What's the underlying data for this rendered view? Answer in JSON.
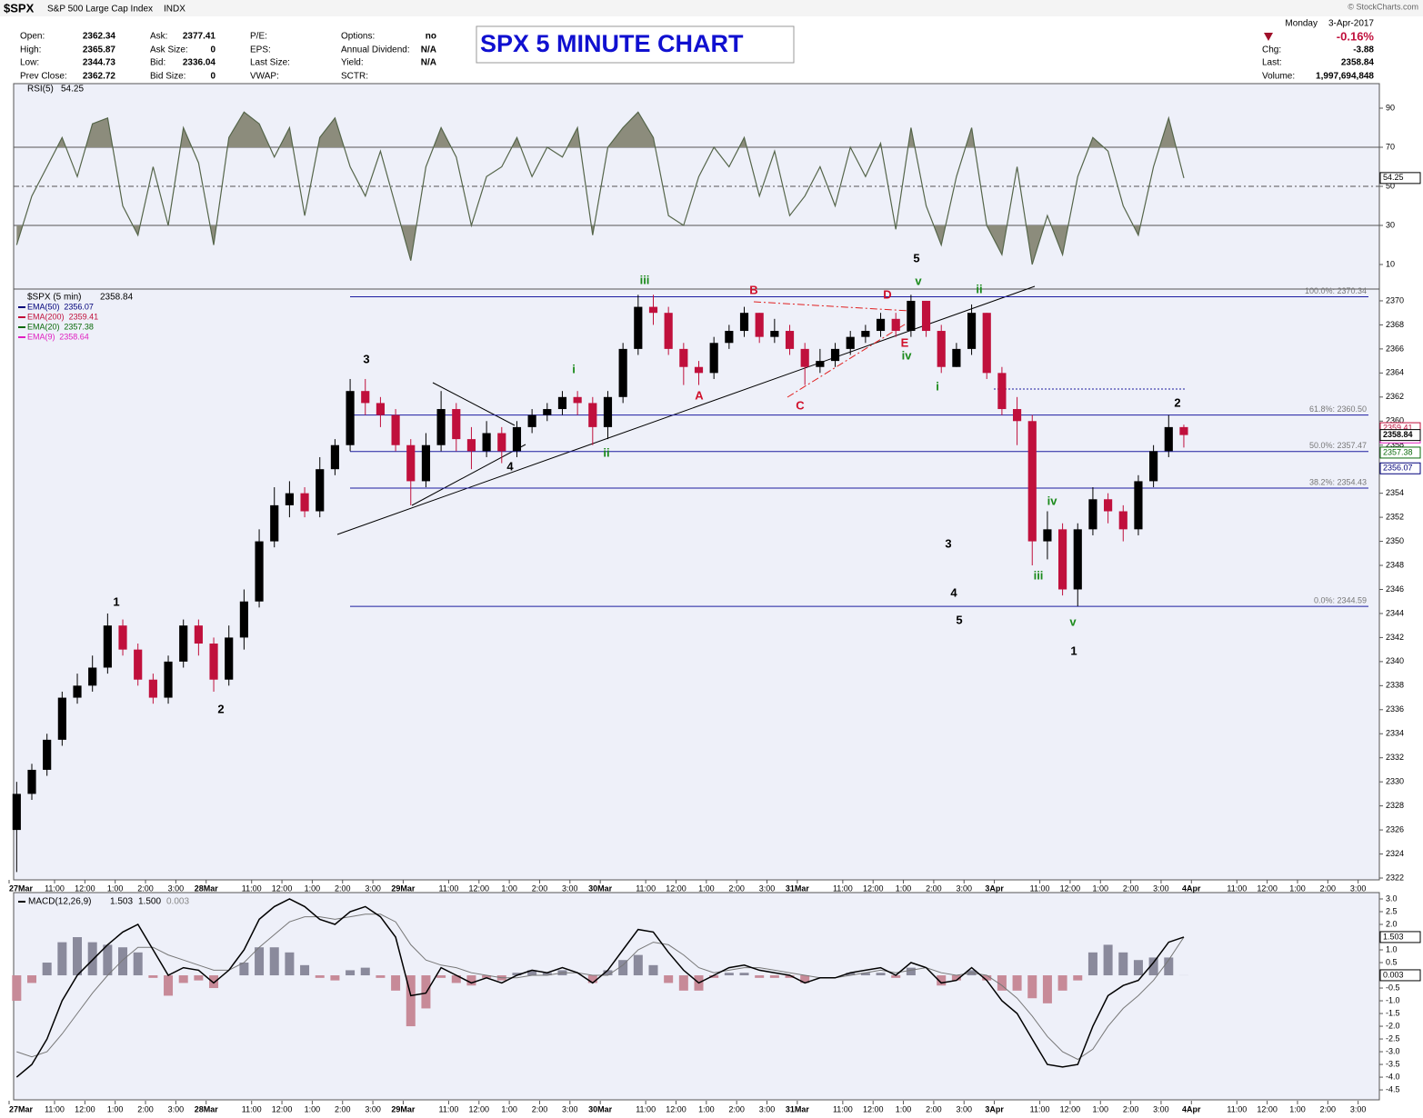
{
  "header": {
    "symbol": "$SPX",
    "name": "S&P 500 Large Cap Index",
    "exchange": "INDX",
    "chart_label": "SPX 5 MINUTE CHART",
    "watermark": "© StockCharts.com",
    "columns": [
      [
        {
          "label": "Open:",
          "value": "2362.34"
        },
        {
          "label": "High:",
          "value": "2365.87"
        },
        {
          "label": "Low:",
          "value": "2344.73"
        },
        {
          "label": "Prev Close:",
          "value": "2362.72"
        }
      ],
      [
        {
          "label": "Ask:",
          "value": "2377.41"
        },
        {
          "label": "Ask Size:",
          "value": "0"
        },
        {
          "label": "Bid:",
          "value": "2336.04"
        },
        {
          "label": "Bid Size:",
          "value": "0"
        }
      ],
      [
        {
          "label": "P/E:"
        },
        {
          "label": "EPS:"
        },
        {
          "label": "Last Size:"
        },
        {
          "label": "VWAP:"
        }
      ],
      [
        {
          "label": "Options:",
          "value": "no"
        },
        {
          "label": "Annual Dividend:",
          "value": "N/A"
        },
        {
          "label": "Yield:",
          "value": "N/A"
        },
        {
          "label": "SCTR:"
        }
      ]
    ],
    "date": [
      "Monday",
      "3-Apr-2017"
    ],
    "change_pct": "-0.16%",
    "stats": [
      {
        "label": "Chg:",
        "value": "-3.88"
      },
      {
        "label": "Last:",
        "value": "2358.84"
      },
      {
        "label": "Volume:",
        "value": "1,997,694,848"
      }
    ]
  },
  "chart_data": [
    {
      "type": "line",
      "title": "RSI(5)",
      "last": 54.25,
      "color": "#55654a",
      "area_color": "#8c8c7c",
      "overbought": 70,
      "oversold": 30,
      "midline": 50,
      "xlim": [
        0,
        90.4
      ],
      "ylim": [
        -2.56,
        102.56
      ],
      "yticks": [
        10,
        30,
        50,
        70,
        90
      ],
      "values": [
        20,
        45,
        60,
        75,
        55,
        82,
        85,
        40,
        25,
        60,
        30,
        80,
        62,
        20,
        75,
        88,
        82,
        65,
        80,
        35,
        75,
        85,
        60,
        45,
        68,
        40,
        12,
        60,
        80,
        65,
        30,
        55,
        60,
        75,
        55,
        70,
        65,
        80,
        25,
        70,
        80,
        88,
        75,
        35,
        30,
        55,
        70,
        60,
        75,
        45,
        68,
        35,
        45,
        60,
        40,
        70,
        55,
        72,
        28,
        80,
        40,
        20,
        55,
        80,
        30,
        15,
        60,
        10,
        35,
        15,
        55,
        75,
        68,
        40,
        25,
        60,
        85,
        54.25
      ]
    },
    {
      "type": "candlestick",
      "title": "$SPX (5 min)",
      "last": 2358.84,
      "up_color": "#000000",
      "down_color": "#c0103c",
      "fib_color": "#1c1ca0",
      "xlim": [
        0,
        90.4
      ],
      "ylim": [
        2321.85,
        2370.98
      ],
      "yticks": [
        2322,
        2324,
        2326,
        2328,
        2330,
        2332,
        2334,
        2336,
        2338,
        2340,
        2342,
        2344,
        2346,
        2348,
        2350,
        2352,
        2354,
        2356,
        2358,
        2360,
        2362,
        2364,
        2366,
        2368,
        2370
      ],
      "xticks": [
        {
          "value": 0,
          "label": "27Mar"
        },
        {
          "value": 3,
          "label": "11:00"
        },
        {
          "value": 5,
          "label": "12:00"
        },
        {
          "value": 7,
          "label": "1:00"
        },
        {
          "value": 9,
          "label": "2:00"
        },
        {
          "value": 11,
          "label": "3:00"
        },
        {
          "value": 13,
          "label": "28Mar"
        },
        {
          "value": 16,
          "label": "11:00"
        },
        {
          "value": 18,
          "label": "12:00"
        },
        {
          "value": 20,
          "label": "1:00"
        },
        {
          "value": 22,
          "label": "2:00"
        },
        {
          "value": 24,
          "label": "3:00"
        },
        {
          "value": 26,
          "label": "29Mar"
        },
        {
          "value": 29,
          "label": "11:00"
        },
        {
          "value": 31,
          "label": "12:00"
        },
        {
          "value": 33,
          "label": "1:00"
        },
        {
          "value": 35,
          "label": "2:00"
        },
        {
          "value": 37,
          "label": "3:00"
        },
        {
          "value": 39,
          "label": "30Mar"
        },
        {
          "value": 42,
          "label": "11:00"
        },
        {
          "value": 44,
          "label": "12:00"
        },
        {
          "value": 46,
          "label": "1:00"
        },
        {
          "value": 48,
          "label": "2:00"
        },
        {
          "value": 50,
          "label": "3:00"
        },
        {
          "value": 52,
          "label": "31Mar"
        },
        {
          "value": 55,
          "label": "11:00"
        },
        {
          "value": 57,
          "label": "12:00"
        },
        {
          "value": 59,
          "label": "1:00"
        },
        {
          "value": 61,
          "label": "2:00"
        },
        {
          "value": 63,
          "label": "3:00"
        },
        {
          "value": 65,
          "label": "3Apr"
        },
        {
          "value": 68,
          "label": "11:00"
        },
        {
          "value": 70,
          "label": "12:00"
        },
        {
          "value": 72,
          "label": "1:00"
        },
        {
          "value": 74,
          "label": "2:00"
        },
        {
          "value": 76,
          "label": "3:00"
        },
        {
          "value": 78,
          "label": "4Apr"
        },
        {
          "value": 81,
          "label": "11:00"
        },
        {
          "value": 83,
          "label": "12:00"
        },
        {
          "value": 85,
          "label": "1:00"
        },
        {
          "value": 87,
          "label": "2:00"
        },
        {
          "value": 89,
          "label": "3:00"
        }
      ],
      "open": [
        2326,
        2329,
        2331,
        2333.5,
        2337,
        2338,
        2339.5,
        2343,
        2341,
        2338.5,
        2337,
        2340,
        2343,
        2341.5,
        2338.5,
        2342,
        2345,
        2350,
        2353,
        2354,
        2352.5,
        2356,
        2358,
        2362.5,
        2361.5,
        2360.5,
        2358,
        2355,
        2358,
        2361,
        2358.5,
        2357.5,
        2359,
        2357.5,
        2359.5,
        2360.5,
        2361,
        2362,
        2361.5,
        2359.5,
        2362,
        2366,
        2369.5,
        2369,
        2366,
        2364.5,
        2364,
        2366.5,
        2367.5,
        2369,
        2367,
        2367.5,
        2366,
        2364.5,
        2365,
        2366,
        2367,
        2367.5,
        2368.5,
        2367.5,
        2370,
        2367.5,
        2364.5,
        2366,
        2369,
        2364,
        2361,
        2360,
        2350,
        2351,
        2346,
        2351,
        2353.5,
        2352.5,
        2351,
        2355,
        2357.5,
        2359.5
      ],
      "high": [
        2330,
        2331.5,
        2334,
        2337.5,
        2339,
        2340.5,
        2344,
        2343.5,
        2341.5,
        2339,
        2340.5,
        2343.5,
        2343.5,
        2342,
        2343,
        2346,
        2351,
        2354.5,
        2355,
        2354.5,
        2357,
        2358.5,
        2363.5,
        2363.5,
        2362,
        2361,
        2358.5,
        2359,
        2362.5,
        2361.5,
        2359.5,
        2360,
        2359.5,
        2360,
        2361,
        2361.5,
        2362.5,
        2362.5,
        2362,
        2362.5,
        2366.5,
        2370.5,
        2370.5,
        2369.5,
        2366.5,
        2365,
        2367,
        2368,
        2369.5,
        2369,
        2368.5,
        2368,
        2366.5,
        2366,
        2366.5,
        2367.5,
        2368,
        2369,
        2369,
        2370.5,
        2370,
        2368,
        2366.5,
        2369.7,
        2369,
        2364.5,
        2362,
        2360.5,
        2352.5,
        2351.5,
        2351.5,
        2354.5,
        2354,
        2353,
        2355.5,
        2358,
        2360.5,
        2359.7
      ],
      "low": [
        2322.5,
        2328.5,
        2330.5,
        2333,
        2336.5,
        2337.5,
        2339,
        2340.5,
        2338,
        2336.5,
        2336.5,
        2339.5,
        2340.5,
        2337.5,
        2338,
        2341,
        2344.5,
        2349.5,
        2352,
        2352,
        2352,
        2355.5,
        2357.5,
        2360.5,
        2359.5,
        2357.5,
        2353,
        2354.5,
        2357.5,
        2357.5,
        2356,
        2357,
        2356.5,
        2357,
        2359,
        2360,
        2360.5,
        2360.5,
        2358,
        2358.5,
        2361.5,
        2365.5,
        2368,
        2365.5,
        2363,
        2363,
        2363.5,
        2366,
        2367,
        2366.5,
        2366.5,
        2365.5,
        2363,
        2364,
        2364.5,
        2365.5,
        2366.5,
        2367,
        2367,
        2367,
        2367,
        2364,
        2364.5,
        2365.5,
        2363.5,
        2360.5,
        2358,
        2348,
        2348.5,
        2345.5,
        2344.6,
        2350.5,
        2351.5,
        2350,
        2350.5,
        2354.5,
        2357,
        2357.8
      ],
      "close": [
        2329,
        2331,
        2333.5,
        2337,
        2338,
        2339.5,
        2343,
        2341,
        2338.5,
        2337,
        2340,
        2343,
        2341.5,
        2338.5,
        2342,
        2345,
        2350,
        2353,
        2354,
        2352.5,
        2356,
        2358,
        2362.5,
        2361.5,
        2360.5,
        2358,
        2355,
        2358,
        2361,
        2358.5,
        2357.5,
        2359,
        2357.5,
        2359.5,
        2360.5,
        2361,
        2362,
        2361.5,
        2359.5,
        2362,
        2366,
        2369.5,
        2369,
        2366,
        2364.5,
        2364,
        2366.5,
        2367.5,
        2369,
        2367,
        2367.5,
        2366,
        2364.5,
        2365,
        2366,
        2367,
        2367.5,
        2368.5,
        2367.5,
        2370,
        2367.5,
        2364.5,
        2366,
        2369,
        2364,
        2361,
        2360,
        2350,
        2351,
        2346,
        2351,
        2353.5,
        2352.5,
        2351,
        2355,
        2357.5,
        2359.5,
        2358.84
      ],
      "indicators": [
        {
          "name": "EMA(50)",
          "value": 2356.07,
          "color": "#00007a"
        },
        {
          "name": "EMA(200)",
          "value": 2359.41,
          "color": "#c0103c"
        },
        {
          "name": "EMA(20)",
          "value": 2357.38,
          "color": "#0a6a0a"
        },
        {
          "name": "EMA(9)",
          "value": 2358.64,
          "color": "#e020c0"
        }
      ],
      "fib_levels": [
        {
          "value": 2370.34,
          "label": "100.0%: 2370.34"
        },
        {
          "value": 2360.5,
          "label": "61.8%: 2360.50"
        },
        {
          "value": 2357.47,
          "label": "50.0%: 2357.47"
        },
        {
          "value": 2354.43,
          "label": "38.2%: 2354.43"
        },
        {
          "value": 2344.59,
          "label": "0.0%: 2344.59"
        }
      ],
      "annotations": [
        {
          "text": "1",
          "color": "#000000"
        },
        {
          "text": "2",
          "color": "#000000"
        },
        {
          "text": "3",
          "color": "#000000"
        },
        {
          "text": "4",
          "color": "#000000"
        },
        {
          "text": "iii",
          "color": "#1a8a1a"
        },
        {
          "text": "i",
          "color": "#1a8a1a"
        },
        {
          "text": "ii",
          "color": "#1a8a1a"
        },
        {
          "text": "A",
          "color": "#d0102a"
        },
        {
          "text": "B",
          "color": "#d0102a"
        },
        {
          "text": "C",
          "color": "#d0102a"
        },
        {
          "text": "D",
          "color": "#d0102a"
        },
        {
          "text": "E",
          "color": "#d0102a"
        },
        {
          "text": "iv",
          "color": "#1a8a1a"
        },
        {
          "text": "5",
          "color": "#000000"
        },
        {
          "text": "v",
          "color": "#1a8a1a"
        },
        {
          "text": "ii",
          "color": "#1a8a1a"
        },
        {
          "text": "i",
          "color": "#1a8a1a"
        },
        {
          "text": "3",
          "color": "#000000"
        },
        {
          "text": "4",
          "color": "#000000"
        },
        {
          "text": "5",
          "color": "#000000"
        },
        {
          "text": "iii",
          "color": "#1a8a1a"
        },
        {
          "text": "iv",
          "color": "#1a8a1a"
        },
        {
          "text": "v",
          "color": "#1a8a1a"
        },
        {
          "text": "1",
          "color": "#000000"
        },
        {
          "text": "2",
          "color": "#000000"
        }
      ]
    },
    {
      "type": "macd",
      "title": "MACD(12,26,9)",
      "xlim": [
        0,
        90.4
      ],
      "ylim": [
        -4.89,
        3.25
      ],
      "yticks": [
        {
          "value": 3,
          "label": "3.0"
        },
        2.5,
        {
          "value": 2,
          "label": "2.0"
        },
        1.5,
        {
          "value": 1,
          "label": "1.0"
        },
        0.5,
        -0.5,
        {
          "value": -1,
          "label": "-1.0"
        },
        -1.5,
        {
          "value": -2,
          "label": "-2.0"
        },
        -2.5,
        {
          "value": -3,
          "label": "-3.0"
        },
        -3.5,
        {
          "value": -4,
          "label": "-4.0"
        },
        -4.5
      ],
      "macd": {
        "color": "#000000",
        "last": 1.503,
        "values": [
          -4.0,
          -3.5,
          -2.5,
          -1.0,
          0.0,
          0.6,
          1.2,
          1.7,
          2.0,
          1.0,
          0.0,
          0.3,
          0.2,
          -0.3,
          0.2,
          1.0,
          2.2,
          2.7,
          3.0,
          2.7,
          2.2,
          2.0,
          2.5,
          2.7,
          2.3,
          1.5,
          -0.8,
          -0.7,
          0.3,
          0.0,
          -0.3,
          -0.1,
          -0.3,
          0.0,
          0.2,
          0.1,
          0.3,
          0.1,
          -0.3,
          0.2,
          1.0,
          1.8,
          1.7,
          0.9,
          0.2,
          -0.3,
          0.0,
          0.3,
          0.4,
          0.2,
          0.1,
          0.0,
          -0.3,
          -0.1,
          -0.1,
          0.1,
          0.2,
          0.3,
          0.0,
          0.5,
          0.3,
          -0.3,
          -0.2,
          0.3,
          -0.2,
          -1.0,
          -1.5,
          -2.5,
          -3.5,
          -3.6,
          -3.5,
          -2.0,
          -0.8,
          -0.4,
          -0.2,
          0.5,
          1.3,
          1.503
        ]
      },
      "signal": {
        "color": "#777777",
        "last": 1.5,
        "last_label": "1.500",
        "values": [
          -3.0,
          -3.2,
          -3.0,
          -2.3,
          -1.5,
          -0.7,
          0.0,
          0.6,
          1.1,
          1.1,
          0.8,
          0.6,
          0.4,
          0.2,
          0.2,
          0.5,
          1.1,
          1.6,
          2.1,
          2.3,
          2.3,
          2.2,
          2.3,
          2.4,
          2.4,
          2.1,
          1.2,
          0.6,
          0.4,
          0.3,
          0.1,
          0.0,
          -0.1,
          -0.1,
          0.0,
          0.0,
          0.1,
          0.1,
          0.0,
          0.0,
          0.4,
          1.0,
          1.3,
          1.2,
          0.8,
          0.3,
          0.1,
          0.2,
          0.3,
          0.3,
          0.2,
          0.1,
          0.0,
          -0.1,
          -0.1,
          0.0,
          0.1,
          0.2,
          0.1,
          0.2,
          0.3,
          0.1,
          0.0,
          0.1,
          0.0,
          -0.4,
          -0.9,
          -1.6,
          -2.4,
          -3.0,
          -3.3,
          -2.9,
          -2.0,
          -1.3,
          -0.8,
          -0.2,
          0.6,
          1.5
        ]
      },
      "histogram": {
        "color": "#8a8a9c",
        "negative_color": "#c78a98",
        "last": 0.003,
        "values": [
          -1.0,
          -0.3,
          0.5,
          1.3,
          1.5,
          1.3,
          1.2,
          1.1,
          0.9,
          -0.1,
          -0.8,
          -0.3,
          -0.2,
          -0.5,
          0.0,
          0.5,
          1.1,
          1.1,
          0.9,
          0.4,
          -0.1,
          -0.2,
          0.2,
          0.3,
          -0.1,
          -0.6,
          -2.0,
          -1.3,
          -0.1,
          -0.3,
          -0.4,
          -0.1,
          -0.2,
          0.1,
          0.2,
          0.1,
          0.2,
          0.0,
          -0.3,
          0.2,
          0.6,
          0.8,
          0.4,
          -0.3,
          -0.6,
          -0.6,
          -0.1,
          0.1,
          0.1,
          -0.1,
          -0.1,
          -0.1,
          -0.3,
          0.0,
          0.0,
          0.1,
          0.1,
          0.1,
          -0.1,
          0.3,
          0.0,
          -0.4,
          -0.2,
          0.2,
          -0.2,
          -0.6,
          -0.6,
          -0.9,
          -1.1,
          -0.6,
          -0.2,
          0.9,
          1.2,
          0.9,
          0.6,
          0.7,
          0.7,
          0.003
        ]
      }
    }
  ]
}
